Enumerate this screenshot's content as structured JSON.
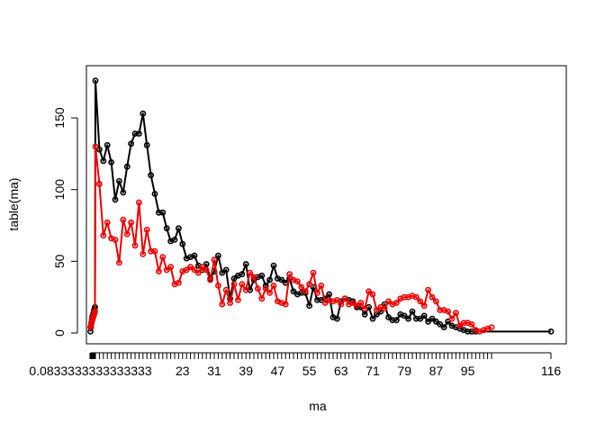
{
  "chart_data": {
    "type": "line",
    "title": "",
    "xlabel": "ma",
    "ylabel": "table(ma)",
    "xlim": [
      0,
      116
    ],
    "ylim": [
      0,
      175
    ],
    "grid": false,
    "legend": "none",
    "x_tick_labels_shown": [
      "0.0833333333333333",
      "23",
      "31",
      "39",
      "47",
      "55",
      "63",
      "71",
      "79",
      "87",
      "95",
      "116"
    ],
    "x_tick_values_shown": [
      0.0833333333333333,
      23,
      31,
      39,
      47,
      55,
      63,
      71,
      79,
      87,
      95,
      116
    ],
    "y_ticks": [
      0,
      50,
      100,
      150
    ],
    "series": [
      {
        "color": "#000000",
        "x": [
          0.08,
          0.17,
          0.25,
          0.33,
          0.42,
          0.5,
          0.58,
          0.67,
          0.75,
          0.83,
          0.92,
          1,
          2,
          3,
          4,
          5,
          6,
          7,
          8,
          9,
          10,
          11,
          12,
          13,
          14,
          15,
          16,
          17,
          18,
          19,
          20,
          21,
          22,
          23,
          24,
          25,
          26,
          27,
          28,
          29,
          30,
          31,
          32,
          33,
          34,
          35,
          36,
          37,
          38,
          39,
          40,
          41,
          42,
          43,
          44,
          45,
          46,
          47,
          48,
          49,
          50,
          51,
          52,
          53,
          54,
          55,
          56,
          57,
          58,
          59,
          60,
          61,
          62,
          63,
          64,
          65,
          66,
          67,
          68,
          69,
          70,
          71,
          72,
          73,
          74,
          75,
          76,
          77,
          78,
          79,
          80,
          81,
          82,
          83,
          84,
          85,
          86,
          87,
          88,
          89,
          90,
          91,
          92,
          93,
          94,
          95,
          96,
          97,
          116
        ],
        "values": [
          1,
          4,
          7,
          9,
          11,
          12,
          13,
          14,
          16,
          17,
          18,
          176,
          128,
          120,
          131,
          119,
          93,
          106,
          98,
          116,
          132,
          139,
          139,
          153,
          131,
          110,
          97,
          84,
          84,
          73,
          64,
          65,
          73,
          62,
          52,
          53,
          54,
          47,
          44,
          48,
          38,
          43,
          54,
          42,
          44,
          24,
          38,
          40,
          41,
          48,
          30,
          37,
          39,
          40,
          33,
          37,
          47,
          38,
          37,
          35,
          38,
          29,
          27,
          28,
          28,
          19,
          32,
          23,
          23,
          24,
          27,
          11,
          10,
          22,
          24,
          23,
          22,
          18,
          18,
          13,
          18,
          10,
          13,
          15,
          20,
          11,
          9,
          9,
          13,
          12,
          10,
          15,
          10,
          10,
          12,
          8,
          10,
          8,
          6,
          4,
          8,
          5,
          4,
          3,
          2,
          1,
          1,
          1,
          1
        ]
      },
      {
        "color": "#ee0000",
        "x": [
          0.08,
          0.17,
          0.25,
          0.33,
          0.42,
          0.5,
          0.58,
          0.67,
          0.75,
          0.83,
          0.92,
          1,
          2,
          3,
          4,
          5,
          6,
          7,
          8,
          9,
          10,
          11,
          12,
          13,
          14,
          15,
          16,
          17,
          18,
          19,
          20,
          21,
          22,
          23,
          24,
          25,
          26,
          27,
          28,
          29,
          30,
          31,
          32,
          33,
          34,
          35,
          36,
          37,
          38,
          39,
          40,
          41,
          42,
          43,
          44,
          45,
          46,
          47,
          48,
          49,
          50,
          51,
          52,
          53,
          54,
          55,
          56,
          57,
          58,
          59,
          60,
          61,
          62,
          63,
          64,
          65,
          66,
          67,
          68,
          69,
          70,
          71,
          72,
          73,
          74,
          75,
          76,
          77,
          78,
          79,
          80,
          81,
          82,
          83,
          84,
          85,
          86,
          87,
          88,
          89,
          90,
          91,
          92,
          93,
          94,
          95,
          96,
          97,
          98,
          99,
          100,
          101
        ],
        "values": [
          4,
          5,
          6,
          8,
          9,
          10,
          11,
          12,
          13,
          14,
          15,
          130,
          104,
          68,
          77,
          66,
          65,
          49,
          79,
          69,
          77,
          61,
          91,
          55,
          72,
          57,
          57,
          43,
          53,
          44,
          46,
          34,
          35,
          43,
          44,
          46,
          44,
          42,
          46,
          44,
          37,
          51,
          33,
          20,
          30,
          21,
          34,
          23,
          34,
          30,
          42,
          39,
          31,
          24,
          31,
          28,
          33,
          22,
          21,
          20,
          41,
          37,
          36,
          32,
          29,
          34,
          42,
          28,
          33,
          21,
          23,
          22,
          23,
          20,
          24,
          20,
          21,
          19,
          21,
          17,
          29,
          27,
          16,
          18,
          17,
          22,
          20,
          21,
          24,
          25,
          25,
          26,
          25,
          22,
          19,
          30,
          25,
          22,
          16,
          16,
          15,
          10,
          14,
          5,
          7,
          7,
          6,
          2,
          1,
          2,
          3,
          4
        ]
      }
    ]
  }
}
